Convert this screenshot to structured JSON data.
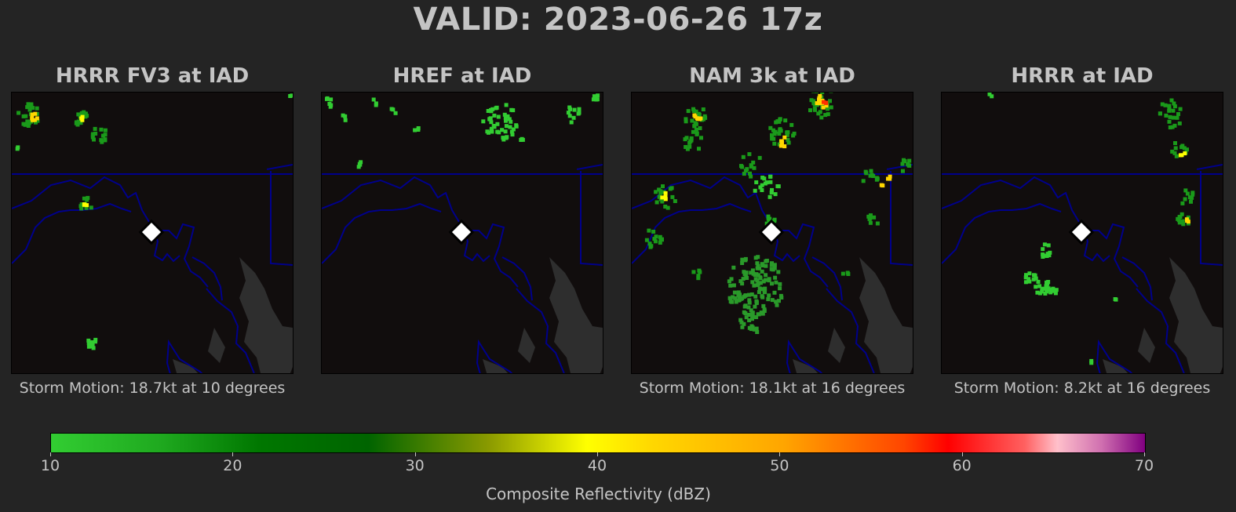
{
  "title": "VALID: 2023-06-26 17z",
  "panels": [
    {
      "title": "HRRR FV3 at IAD",
      "motion": "Storm Motion: 18.7kt at 10 degrees"
    },
    {
      "title": "HREF at IAD",
      "motion": ""
    },
    {
      "title": "NAM 3k at IAD",
      "motion": "Storm Motion: 18.1kt at 16 degrees"
    },
    {
      "title": "HRRR at IAD",
      "motion": "Storm Motion: 8.2kt at 16 degrees"
    }
  ],
  "colorbar": {
    "label": "Composite Reflectivity (dBZ)",
    "ticks": [
      "10",
      "20",
      "30",
      "40",
      "50",
      "60",
      "70"
    ],
    "colors": {
      "low": "#32cd32",
      "mid": "#ffff00",
      "high": "#ff0000",
      "max": "#800080"
    }
  },
  "colors": {
    "background": "#242424",
    "map_bg": "#110d0d",
    "water": "#2e2e2e",
    "borders": "#00008b",
    "marker": "#ffffff"
  }
}
